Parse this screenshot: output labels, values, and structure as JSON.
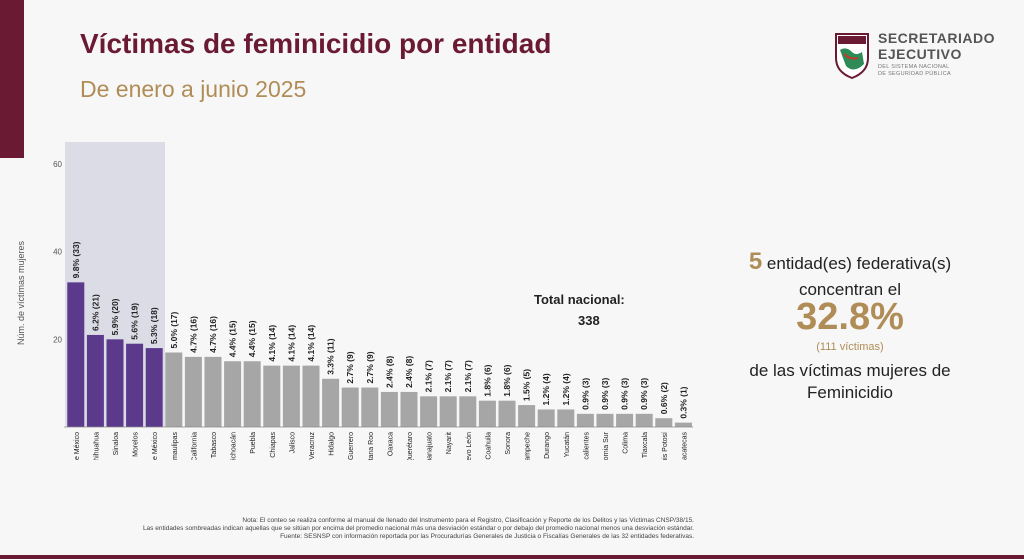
{
  "header": {
    "title": "Víctimas de feminicidio por entidad",
    "subtitle": "De enero a junio 2025"
  },
  "logo": {
    "line1": "SECRETARIADO",
    "line2": "EJECUTIVO",
    "line3": "DEL SISTEMA NACIONAL",
    "line4": "DE SEGURIDAD PÚBLICA"
  },
  "total": {
    "label": "Total nacional:",
    "value": "338"
  },
  "kpi": {
    "count": "5",
    "line1_text": "entidad(es)   federativa(s)",
    "line2": "concentran el",
    "percent": "32.8%",
    "sub": "(111  víctimas)",
    "line3": "de las   víctimas   mujeres de",
    "line4": "Feminicidio"
  },
  "notes": {
    "line1": "Nota: El conteo se realiza conforme al manual de llenado del Instrumento para el Registro, Clasificación y Reporte de los Delitos y las Víctimas CNSP/38/15.",
    "line2": "Las entidades sombreadas indican aquellas que se sitúan por encima del promedio nacional más una desviación estándar o por debajo del promedio nacional menos una desviación estándar.",
    "line3": "Fuente: SESNSP con información reportada por las Procuradurías Generales de Justicia o Fiscalías Generales de las 32 entidades federativas."
  },
  "colors": {
    "highlight": "#5b3a8c",
    "normal": "#a6a6a6",
    "shade": "#dcdce6",
    "accent": "#b08d57",
    "brand": "#6b1a33"
  },
  "chart_data": {
    "type": "bar",
    "ylabel": "Núm. de víctimas mujeres",
    "ylim": [
      0,
      60
    ],
    "yticks": [
      20,
      40,
      60
    ],
    "categories": [
      "Estado de México",
      "Chihuahua",
      "Sinaloa",
      "Morelos",
      "Ciudad de México",
      "Tamaulipas",
      "Baja California",
      "Tabasco",
      "Michoacán",
      "Puebla",
      "Chiapas",
      "Jalisco",
      "Veracruz",
      "Hidalgo",
      "Guerrero",
      "Quintana Roo",
      "Oaxaca",
      "Querétaro",
      "Guanajuato",
      "Nayarit",
      "Nuevo León",
      "Coahuila",
      "Sonora",
      "Campeche",
      "Durango",
      "Yucatán",
      "Aguascalientes",
      "Baja California Sur",
      "Colima",
      "Tlaxcala",
      "San Luis Potosí",
      "Zacatecas"
    ],
    "values": [
      33,
      21,
      20,
      19,
      18,
      17,
      16,
      16,
      15,
      15,
      14,
      14,
      14,
      11,
      9,
      9,
      8,
      8,
      7,
      7,
      7,
      6,
      6,
      5,
      4,
      4,
      3,
      3,
      3,
      3,
      2,
      1
    ],
    "labels": [
      "9.8% (33)",
      "6.2% (21)",
      "5.9% (20)",
      "5.6% (19)",
      "5.3% (18)",
      "5.0% (17)",
      "4.7% (16)",
      "4.7% (16)",
      "4.4% (15)",
      "4.4% (15)",
      "4.1% (14)",
      "4.1% (14)",
      "4.1% (14)",
      "3.3% (11)",
      "2.7% (9)",
      "2.7% (9)",
      "2.4% (8)",
      "2.4% (8)",
      "2.1% (7)",
      "2.1% (7)",
      "2.1% (7)",
      "1.8% (6)",
      "1.8% (6)",
      "1.5% (5)",
      "1.2% (4)",
      "1.2% (4)",
      "0.9% (3)",
      "0.9% (3)",
      "0.9% (3)",
      "0.9% (3)",
      "0.6% (2)",
      "0.3% (1)"
    ],
    "highlighted_count": 5
  }
}
